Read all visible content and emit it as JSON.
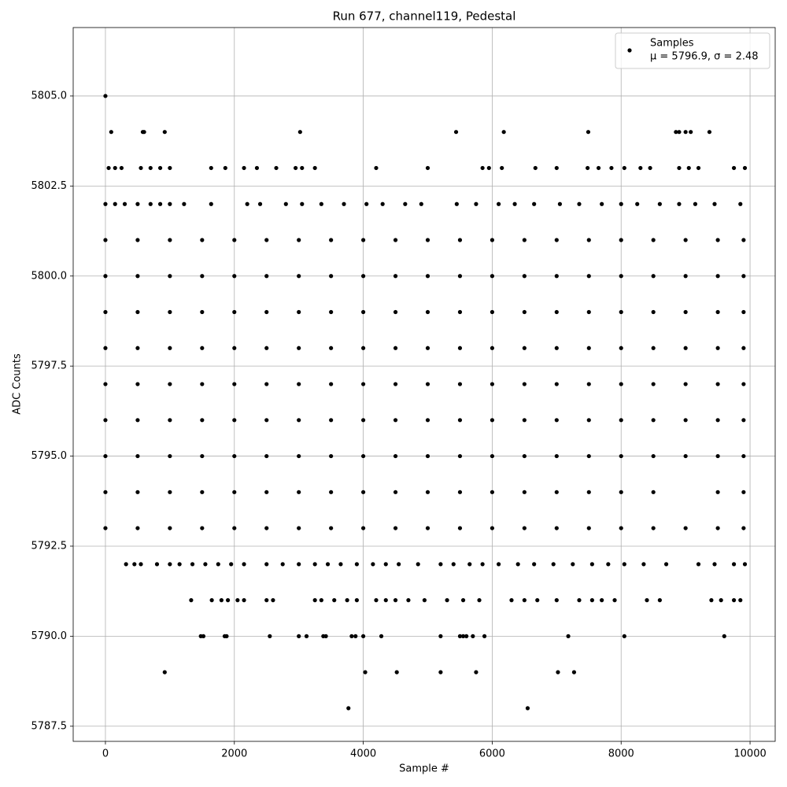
{
  "chart_data": {
    "type": "scatter",
    "title": "Run 677, channel119, Pedestal",
    "x_label": "Sample #",
    "y_label": "ADC Counts",
    "annotation": "μ = 5796.9, σ = 2.48",
    "legend": "upper right",
    "grid": true,
    "xlim": [
      -500,
      10390
    ],
    "ylim": [
      5787.08,
      5806.9
    ],
    "xticks": [
      0,
      2000,
      4000,
      6000,
      8000,
      10000
    ],
    "yticks": [
      5787.5,
      {
        "value": 5790,
        "label": "5790.0"
      },
      5792.5,
      {
        "value": 5795,
        "label": "5795.0"
      },
      5797.5,
      {
        "value": 5800,
        "label": "5800.0"
      },
      5802.5,
      {
        "value": 5805,
        "label": "5805.0"
      }
    ],
    "series": [
      {
        "name": "Samples",
        "color": "#000000",
        "x": [
          0,
          90,
          580,
          600,
          920,
          3020,
          5440,
          6180,
          7490,
          8850,
          8900,
          9000,
          9080,
          9370,
          50,
          150,
          250,
          550,
          700,
          850,
          1000,
          1640,
          1860,
          2150,
          2350,
          2650,
          2950,
          3050,
          3250,
          4200,
          5000,
          5850,
          5950,
          6150,
          6670,
          7000,
          7480,
          7650,
          7850,
          8050,
          8300,
          8450,
          8900,
          9050,
          9200,
          9750,
          9920,
          0,
          150,
          300,
          500,
          700,
          850,
          1000,
          1220,
          1640,
          2200,
          2400,
          2800,
          3050,
          3350,
          3700,
          4050,
          4300,
          4650,
          4900,
          5450,
          5750,
          6100,
          6350,
          6650,
          7050,
          7350,
          7700,
          8000,
          8250,
          8600,
          8900,
          9150,
          9450,
          9850,
          0,
          500,
          1000,
          1500,
          2000,
          2500,
          3000,
          3500,
          4000,
          4500,
          5000,
          5500,
          6000,
          6500,
          7000,
          7500,
          8000,
          8500,
          9000,
          9500,
          9900,
          0,
          500,
          1000,
          1500,
          2000,
          2500,
          3000,
          3500,
          4000,
          4500,
          5000,
          5500,
          6000,
          6500,
          7000,
          7500,
          8000,
          8500,
          9000,
          9500,
          9900,
          0,
          500,
          1000,
          1500,
          2000,
          2500,
          3000,
          3500,
          4000,
          4500,
          5000,
          5500,
          6000,
          6500,
          7000,
          7500,
          8000,
          8500,
          9000,
          9500,
          9900,
          0,
          500,
          1000,
          1500,
          2000,
          2500,
          3000,
          3500,
          4000,
          4500,
          5000,
          5500,
          6000,
          6500,
          7000,
          7500,
          8000,
          8500,
          9000,
          9500,
          9900,
          0,
          500,
          1000,
          1500,
          2000,
          2500,
          3000,
          3500,
          4000,
          4500,
          5000,
          5500,
          6000,
          6500,
          7000,
          7500,
          8000,
          8500,
          9000,
          9500,
          9900,
          0,
          500,
          1000,
          1500,
          2000,
          2500,
          3000,
          3500,
          4000,
          4500,
          5000,
          5500,
          6000,
          6500,
          7000,
          7500,
          8000,
          8500,
          9000,
          9500,
          9900,
          0,
          500,
          1000,
          1500,
          2000,
          2500,
          3000,
          3500,
          4000,
          4500,
          5000,
          5500,
          6000,
          6500,
          7000,
          7500,
          8000,
          8500,
          9000,
          9500,
          9900,
          0,
          500,
          1000,
          1500,
          2000,
          2500,
          3000,
          3500,
          4000,
          4500,
          5000,
          5500,
          6000,
          6500,
          7000,
          7500,
          8000,
          8500,
          9500,
          9900,
          0,
          500,
          1000,
          1500,
          2000,
          2500,
          3000,
          3500,
          4000,
          4500,
          5000,
          5500,
          6000,
          6500,
          7000,
          7500,
          8000,
          8500,
          9000,
          9500,
          9900,
          320,
          450,
          550,
          800,
          1000,
          1150,
          1350,
          1550,
          1750,
          1950,
          2150,
          2500,
          2750,
          3000,
          3250,
          3450,
          3650,
          3900,
          4150,
          4350,
          4550,
          4850,
          5200,
          5400,
          5650,
          5850,
          6100,
          6400,
          6650,
          6950,
          7250,
          7550,
          7800,
          8050,
          8350,
          8700,
          9200,
          9450,
          9750,
          9920,
          1330,
          1650,
          1800,
          1900,
          2050,
          2150,
          2500,
          2600,
          3250,
          3350,
          3550,
          3750,
          3900,
          4200,
          4350,
          4500,
          4700,
          4950,
          5300,
          5550,
          5800,
          6300,
          6500,
          6700,
          7000,
          7350,
          7550,
          7700,
          7900,
          8400,
          8600,
          9400,
          9550,
          9750,
          9850,
          1480,
          1520,
          1850,
          1880,
          2550,
          3000,
          3120,
          3380,
          3420,
          3820,
          3880,
          4000,
          4280,
          5200,
          5500,
          5550,
          5600,
          5700,
          5880,
          7180,
          8050,
          9600,
          920,
          4030,
          4520,
          5200,
          5750,
          7020,
          7270,
          3770,
          6550
        ],
        "values": [
          5805,
          5804,
          5804,
          5804,
          5804,
          5804,
          5804,
          5804,
          5804,
          5804,
          5804,
          5804,
          5804,
          5804,
          5803,
          5803,
          5803,
          5803,
          5803,
          5803,
          5803,
          5803,
          5803,
          5803,
          5803,
          5803,
          5803,
          5803,
          5803,
          5803,
          5803,
          5803,
          5803,
          5803,
          5803,
          5803,
          5803,
          5803,
          5803,
          5803,
          5803,
          5803,
          5803,
          5803,
          5803,
          5803,
          5803,
          5802,
          5802,
          5802,
          5802,
          5802,
          5802,
          5802,
          5802,
          5802,
          5802,
          5802,
          5802,
          5802,
          5802,
          5802,
          5802,
          5802,
          5802,
          5802,
          5802,
          5802,
          5802,
          5802,
          5802,
          5802,
          5802,
          5802,
          5802,
          5802,
          5802,
          5802,
          5802,
          5802,
          5802,
          5801,
          5801,
          5801,
          5801,
          5801,
          5801,
          5801,
          5801,
          5801,
          5801,
          5801,
          5801,
          5801,
          5801,
          5801,
          5801,
          5801,
          5801,
          5801,
          5801,
          5801,
          5800,
          5800,
          5800,
          5800,
          5800,
          5800,
          5800,
          5800,
          5800,
          5800,
          5800,
          5800,
          5800,
          5800,
          5800,
          5800,
          5800,
          5800,
          5800,
          5800,
          5800,
          5799,
          5799,
          5799,
          5799,
          5799,
          5799,
          5799,
          5799,
          5799,
          5799,
          5799,
          5799,
          5799,
          5799,
          5799,
          5799,
          5799,
          5799,
          5799,
          5799,
          5799,
          5798,
          5798,
          5798,
          5798,
          5798,
          5798,
          5798,
          5798,
          5798,
          5798,
          5798,
          5798,
          5798,
          5798,
          5798,
          5798,
          5798,
          5798,
          5798,
          5798,
          5798,
          5797,
          5797,
          5797,
          5797,
          5797,
          5797,
          5797,
          5797,
          5797,
          5797,
          5797,
          5797,
          5797,
          5797,
          5797,
          5797,
          5797,
          5797,
          5797,
          5797,
          5797,
          5796,
          5796,
          5796,
          5796,
          5796,
          5796,
          5796,
          5796,
          5796,
          5796,
          5796,
          5796,
          5796,
          5796,
          5796,
          5796,
          5796,
          5796,
          5796,
          5796,
          5796,
          5795,
          5795,
          5795,
          5795,
          5795,
          5795,
          5795,
          5795,
          5795,
          5795,
          5795,
          5795,
          5795,
          5795,
          5795,
          5795,
          5795,
          5795,
          5795,
          5795,
          5795,
          5794,
          5794,
          5794,
          5794,
          5794,
          5794,
          5794,
          5794,
          5794,
          5794,
          5794,
          5794,
          5794,
          5794,
          5794,
          5794,
          5794,
          5794,
          5794,
          5794,
          5793,
          5793,
          5793,
          5793,
          5793,
          5793,
          5793,
          5793,
          5793,
          5793,
          5793,
          5793,
          5793,
          5793,
          5793,
          5793,
          5793,
          5793,
          5793,
          5793,
          5793,
          5792,
          5792,
          5792,
          5792,
          5792,
          5792,
          5792,
          5792,
          5792,
          5792,
          5792,
          5792,
          5792,
          5792,
          5792,
          5792,
          5792,
          5792,
          5792,
          5792,
          5792,
          5792,
          5792,
          5792,
          5792,
          5792,
          5792,
          5792,
          5792,
          5792,
          5792,
          5792,
          5792,
          5792,
          5792,
          5792,
          5792,
          5792,
          5792,
          5792,
          5791,
          5791,
          5791,
          5791,
          5791,
          5791,
          5791,
          5791,
          5791,
          5791,
          5791,
          5791,
          5791,
          5791,
          5791,
          5791,
          5791,
          5791,
          5791,
          5791,
          5791,
          5791,
          5791,
          5791,
          5791,
          5791,
          5791,
          5791,
          5791,
          5791,
          5791,
          5791,
          5791,
          5791,
          5791,
          5790,
          5790,
          5790,
          5790,
          5790,
          5790,
          5790,
          5790,
          5790,
          5790,
          5790,
          5790,
          5790,
          5790,
          5790,
          5790,
          5790,
          5790,
          5790,
          5790,
          5790,
          5790,
          5789,
          5789,
          5789,
          5789,
          5789,
          5789,
          5789,
          5788,
          5788
        ]
      }
    ]
  }
}
